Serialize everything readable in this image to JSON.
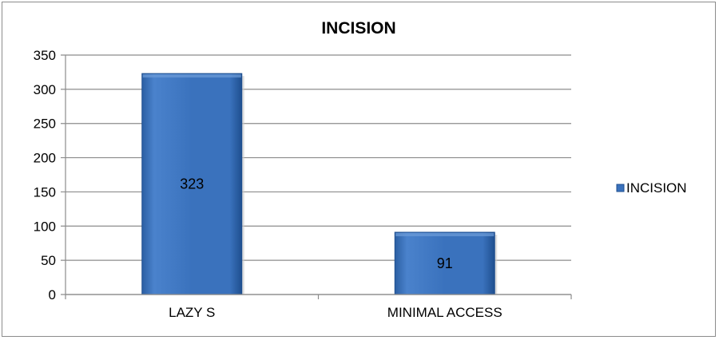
{
  "chart_data": {
    "type": "bar",
    "title": "INCISION",
    "categories": [
      "LAZY S",
      "MINIMAL ACCESS"
    ],
    "series": [
      {
        "name": "INCISION",
        "values": [
          323,
          91
        ]
      }
    ],
    "data_labels": [
      "323",
      "91"
    ],
    "ylim": [
      0,
      350
    ],
    "yticks": [
      0,
      50,
      100,
      150,
      200,
      250,
      300,
      350
    ],
    "grid": true,
    "legend_position": "right",
    "colors": {
      "bar": "#3a72bd",
      "bar_dark": "#1f4f8f",
      "bar_light": "#6e9cd8",
      "grid": "#8c8c8c"
    }
  }
}
